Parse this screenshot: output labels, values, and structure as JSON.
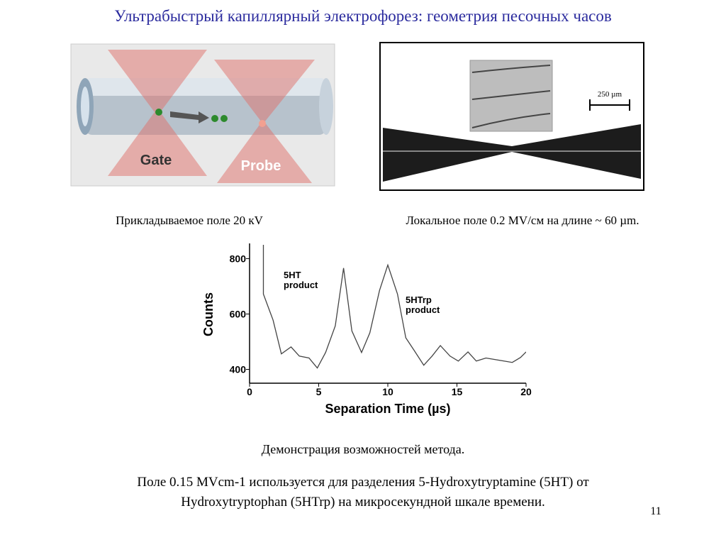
{
  "title": "Ультрабыстрый капиллярный электрофорез: геометрия песочных часов",
  "figure_left": {
    "labels": [
      "Gate",
      "Probe"
    ]
  },
  "figure_right": {
    "scale_label": "250  µm"
  },
  "captions": [
    "Прикладываемое поле 20 кV",
    "Локальное поле 0.2 MV/см на длине ~ 60  µm."
  ],
  "chart_data": {
    "type": "line",
    "x_label": "Separation Time (µs)",
    "y_label": "Counts",
    "annotations": [
      [
        "5HT",
        "product"
      ],
      [
        "5HTrp",
        "product"
      ]
    ],
    "x": [
      1,
      1,
      1.7,
      2.3,
      3,
      3.6,
      4.3,
      4.9,
      5.5,
      6.2,
      6.8,
      7.4,
      8.1,
      8.7,
      9.4,
      10,
      10.7,
      11.3,
      11.9,
      12.6,
      13.2,
      13.8,
      14.5,
      15.1,
      15.8,
      16.4,
      17.1,
      18.4,
      19,
      19.6,
      20
    ],
    "values": [
      850,
      672,
      578,
      456,
      481,
      448,
      441,
      405,
      461,
      557,
      766,
      539,
      461,
      532,
      685,
      777,
      672,
      514,
      469,
      415,
      448,
      486,
      448,
      430,
      463,
      430,
      441,
      430,
      425,
      443,
      463
    ],
    "color": "#444444",
    "xlim": [
      0,
      20
    ],
    "xticks": [
      0,
      5,
      10,
      15,
      20
    ],
    "ylim": [
      350,
      855
    ],
    "yticks": [
      400,
      600,
      800
    ]
  },
  "description_title": "Демонстрация возможностей метода.",
  "description": [
    "Поле 0.15 MVcm-1 используется для разделения  5-Hydroxytryptamine (5HT) от",
    "Hydroxytryptophan (5HTrp) на микросекундной шкале времени."
  ],
  "page_number": "11"
}
